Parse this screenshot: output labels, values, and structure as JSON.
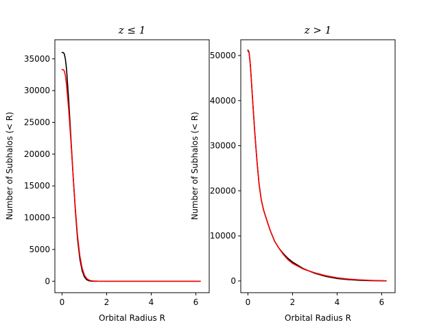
{
  "chart_data": [
    {
      "type": "line",
      "title": "z ≤ 1",
      "xlabel": "Orbital Radius R",
      "ylabel": "Number of Subhalos (< R)",
      "xlim": [
        -0.32,
        6.6
      ],
      "ylim": [
        -1800,
        38000
      ],
      "xticks": [
        0,
        2,
        4,
        6
      ],
      "yticks": [
        0,
        5000,
        10000,
        15000,
        20000,
        25000,
        30000,
        35000
      ],
      "series": [
        {
          "color": "#000000",
          "x": [
            0,
            0.05,
            0.1,
            0.15,
            0.2,
            0.3,
            0.4,
            0.5,
            0.6,
            0.7,
            0.8,
            0.9,
            1.0,
            1.1,
            1.2,
            1.3,
            1.4,
            1.6,
            2.0,
            3.0,
            4.0,
            5.0,
            6.2
          ],
          "y": [
            36000,
            36000,
            35800,
            35000,
            33500,
            28500,
            22500,
            16500,
            11000,
            6500,
            3500,
            1700,
            700,
            250,
            80,
            20,
            5,
            0,
            0,
            0,
            0,
            0,
            0
          ]
        },
        {
          "color": "#ff0000",
          "x": [
            0,
            0.05,
            0.1,
            0.15,
            0.2,
            0.3,
            0.4,
            0.5,
            0.6,
            0.7,
            0.8,
            0.9,
            1.0,
            1.1,
            1.2,
            1.3,
            1.4,
            1.6,
            2.0,
            3.0,
            4.0,
            5.0,
            6.2
          ],
          "y": [
            33300,
            33300,
            33100,
            32400,
            31000,
            27000,
            22000,
            16500,
            11300,
            7000,
            4000,
            2100,
            1000,
            450,
            200,
            90,
            40,
            10,
            0,
            0,
            0,
            0,
            0
          ]
        }
      ]
    },
    {
      "type": "line",
      "title": "z > 1",
      "xlabel": "Orbital Radius R",
      "ylabel": "Number of Subhalos (< R)",
      "xlim": [
        -0.32,
        6.6
      ],
      "ylim": [
        -2600,
        53500
      ],
      "xticks": [
        0,
        2,
        4,
        6
      ],
      "yticks": [
        0,
        10000,
        20000,
        30000,
        40000,
        50000
      ],
      "series": [
        {
          "color": "#000000",
          "x": [
            0,
            0.05,
            0.1,
            0.15,
            0.2,
            0.3,
            0.4,
            0.5,
            0.6,
            0.7,
            0.8,
            1.0,
            1.2,
            1.4,
            1.6,
            1.8,
            2.0,
            2.5,
            3.0,
            3.5,
            4.0,
            4.5,
            5.0,
            5.5,
            6.0,
            6.2
          ],
          "y": [
            51200,
            50800,
            48500,
            45000,
            41000,
            33500,
            27000,
            21500,
            18000,
            15800,
            14200,
            11200,
            8800,
            7200,
            6000,
            5000,
            4200,
            2700,
            1700,
            1000,
            550,
            300,
            150,
            70,
            30,
            20
          ]
        },
        {
          "color": "#ff0000",
          "x": [
            0,
            0.05,
            0.1,
            0.15,
            0.2,
            0.3,
            0.4,
            0.5,
            0.6,
            0.7,
            0.8,
            1.0,
            1.2,
            1.4,
            1.6,
            1.8,
            2.0,
            2.5,
            3.0,
            3.5,
            4.0,
            4.5,
            5.0,
            5.5,
            6.0,
            6.2
          ],
          "y": [
            51000,
            50700,
            48500,
            45000,
            41000,
            33500,
            27000,
            21500,
            18000,
            15800,
            14200,
            11200,
            8800,
            7200,
            5800,
            4700,
            3900,
            2600,
            1800,
            1150,
            700,
            420,
            250,
            130,
            60,
            40
          ]
        }
      ]
    }
  ]
}
